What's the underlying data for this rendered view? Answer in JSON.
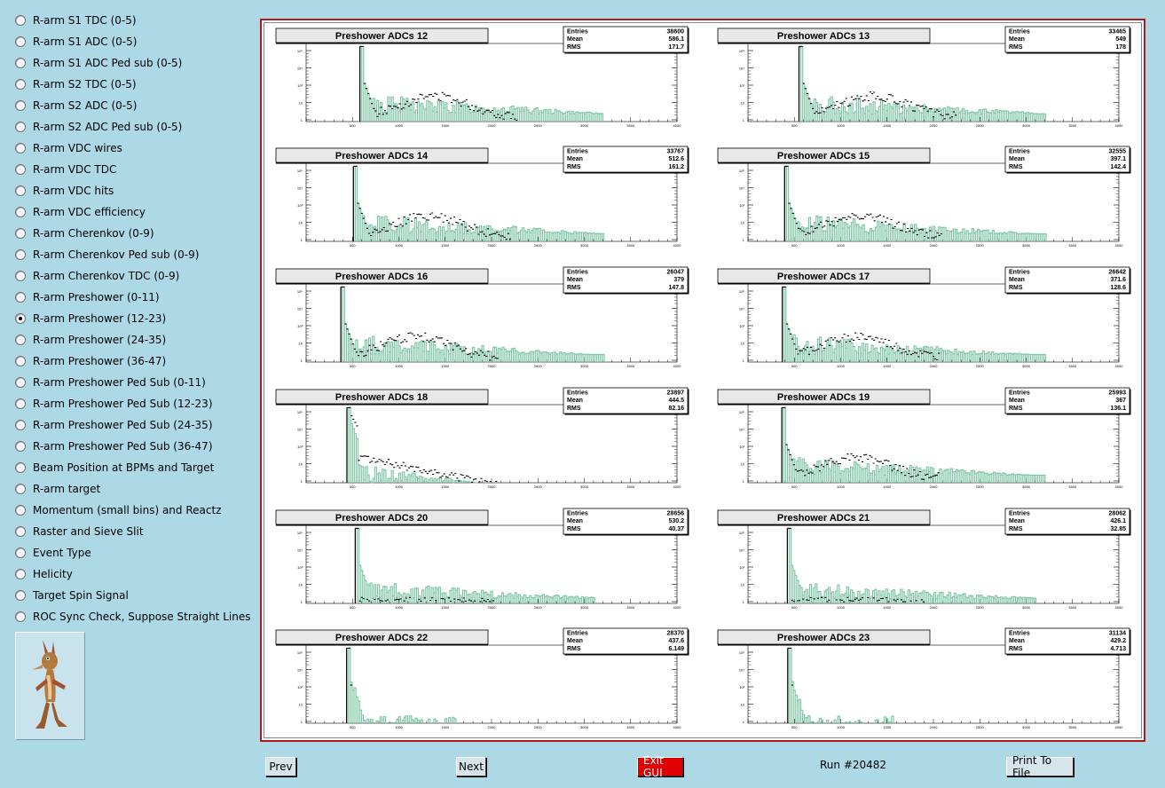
{
  "sidebar": {
    "items": [
      {
        "label": "R-arm S1 TDC (0-5)",
        "selected": false
      },
      {
        "label": "R-arm S1 ADC (0-5)",
        "selected": false
      },
      {
        "label": "R-arm S1 ADC Ped sub (0-5)",
        "selected": false
      },
      {
        "label": "R-arm S2 TDC (0-5)",
        "selected": false
      },
      {
        "label": "R-arm S2 ADC (0-5)",
        "selected": false
      },
      {
        "label": "R-arm S2 ADC Ped sub (0-5)",
        "selected": false
      },
      {
        "label": "R-arm VDC wires",
        "selected": false
      },
      {
        "label": "R-arm VDC TDC",
        "selected": false
      },
      {
        "label": "R-arm VDC hits",
        "selected": false
      },
      {
        "label": "R-arm VDC efficiency",
        "selected": false
      },
      {
        "label": "R-arm Cherenkov (0-9)",
        "selected": false
      },
      {
        "label": "R-arm Cherenkov Ped sub (0-9)",
        "selected": false
      },
      {
        "label": "R-arm Cherenkov TDC (0-9)",
        "selected": false
      },
      {
        "label": "R-arm Preshower (0-11)",
        "selected": false
      },
      {
        "label": "R-arm Preshower (12-23)",
        "selected": true
      },
      {
        "label": "R-arm Preshower (24-35)",
        "selected": false
      },
      {
        "label": "R-arm Preshower (36-47)",
        "selected": false
      },
      {
        "label": "R-arm Preshower Ped Sub (0-11)",
        "selected": false
      },
      {
        "label": "R-arm Preshower Ped Sub (12-23)",
        "selected": false
      },
      {
        "label": "R-arm Preshower Ped Sub (24-35)",
        "selected": false
      },
      {
        "label": "R-arm Preshower Ped Sub (36-47)",
        "selected": false
      },
      {
        "label": "Beam Position at BPMs and Target",
        "selected": false
      },
      {
        "label": "R-arm target",
        "selected": false
      },
      {
        "label": "Momentum (small bins) and Reactz",
        "selected": false
      },
      {
        "label": "Raster and Sieve Slit",
        "selected": false
      },
      {
        "label": "Event Type",
        "selected": false
      },
      {
        "label": "Helicity",
        "selected": false
      },
      {
        "label": "Target Spin Signal",
        "selected": false
      },
      {
        "label": "ROC Sync Check, Suppose Straight Lines",
        "selected": false
      }
    ]
  },
  "stats_labels": {
    "entries": "Entries",
    "mean": "Mean",
    "rms": "RMS"
  },
  "axis_ticks_x": [
    "500",
    "1000",
    "1500",
    "2000",
    "2500",
    "3000",
    "3500",
    "4000"
  ],
  "axis_ticks_y": [
    "10⁵",
    "10⁴",
    "10³",
    "10",
    "1"
  ],
  "chart_data": [
    {
      "type": "bar",
      "title": "Preshower ADCs 12",
      "entries": "38600",
      "mean": "586.1",
      "rms": "171.7",
      "pedestal": 580,
      "shape": "bump"
    },
    {
      "type": "bar",
      "title": "Preshower ADCs 13",
      "entries": "33465",
      "mean": "549",
      "rms": "178",
      "pedestal": 550,
      "shape": "bump"
    },
    {
      "type": "bar",
      "title": "Preshower ADCs 14",
      "entries": "33767",
      "mean": "512.6",
      "rms": "161.2",
      "pedestal": 510,
      "shape": "bump"
    },
    {
      "type": "bar",
      "title": "Preshower ADCs 15",
      "entries": "32555",
      "mean": "397.1",
      "rms": "142.4",
      "pedestal": 395,
      "shape": "bump"
    },
    {
      "type": "bar",
      "title": "Preshower ADCs 16",
      "entries": "26047",
      "mean": "379",
      "rms": "147.8",
      "pedestal": 375,
      "shape": "bump"
    },
    {
      "type": "bar",
      "title": "Preshower ADCs 17",
      "entries": "26642",
      "mean": "371.6",
      "rms": "128.6",
      "pedestal": 370,
      "shape": "bump"
    },
    {
      "type": "bar",
      "title": "Preshower ADCs 18",
      "entries": "23897",
      "mean": "444.5",
      "rms": "82.16",
      "pedestal": 440,
      "shape": "wide"
    },
    {
      "type": "bar",
      "title": "Preshower ADCs 19",
      "entries": "25993",
      "mean": "367",
      "rms": "136.1",
      "pedestal": 365,
      "shape": "bump"
    },
    {
      "type": "bar",
      "title": "Preshower ADCs 20",
      "entries": "28656",
      "mean": "530.2",
      "rms": "40.37",
      "pedestal": 530,
      "shape": "flat"
    },
    {
      "type": "bar",
      "title": "Preshower ADCs 21",
      "entries": "28062",
      "mean": "426.1",
      "rms": "32.85",
      "pedestal": 425,
      "shape": "flat"
    },
    {
      "type": "bar",
      "title": "Preshower ADCs 22",
      "entries": "28370",
      "mean": "437.6",
      "rms": "6.149",
      "pedestal": 437,
      "shape": "spike"
    },
    {
      "type": "bar",
      "title": "Preshower ADCs 23",
      "entries": "31134",
      "mean": "429.2",
      "rms": "4.713",
      "pedestal": 429,
      "shape": "spike"
    }
  ],
  "colors": {
    "reference_hist": "#7fc6a6",
    "current_hist": "#000000",
    "frame": "#b51717",
    "background": "#add8e6"
  },
  "logo_icon": "coyote-icon",
  "buttons": {
    "prev": "Prev",
    "next": "Next",
    "exit": "Exit GUI",
    "print": "Print To File"
  },
  "run_label": "Run #20482"
}
